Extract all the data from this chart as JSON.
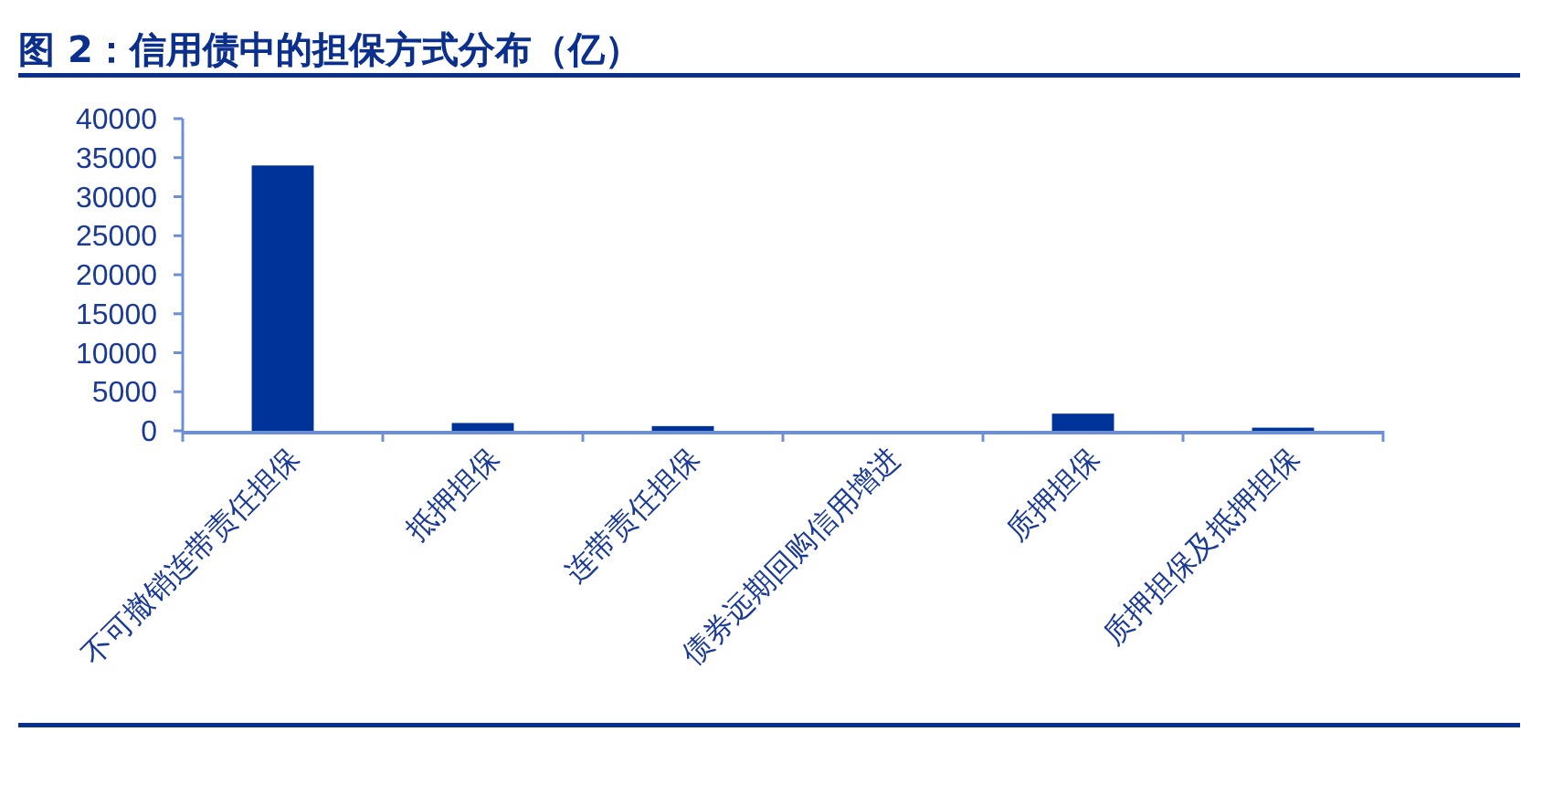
{
  "chart_data": {
    "type": "bar",
    "title": "图 2：信用债中的担保方式分布（亿）",
    "categories": [
      "不可撤销连带责任担保",
      "抵押担保",
      "连带责任担保",
      "债券远期回购信用增进",
      "质押担保",
      "质押担保及抵押担保"
    ],
    "values": [
      34000,
      1000,
      600,
      0,
      2200,
      400
    ],
    "color": "#003399",
    "ylim": [
      0,
      40000
    ],
    "yticks": [
      0,
      5000,
      10000,
      15000,
      20000,
      25000,
      30000,
      35000,
      40000
    ]
  }
}
